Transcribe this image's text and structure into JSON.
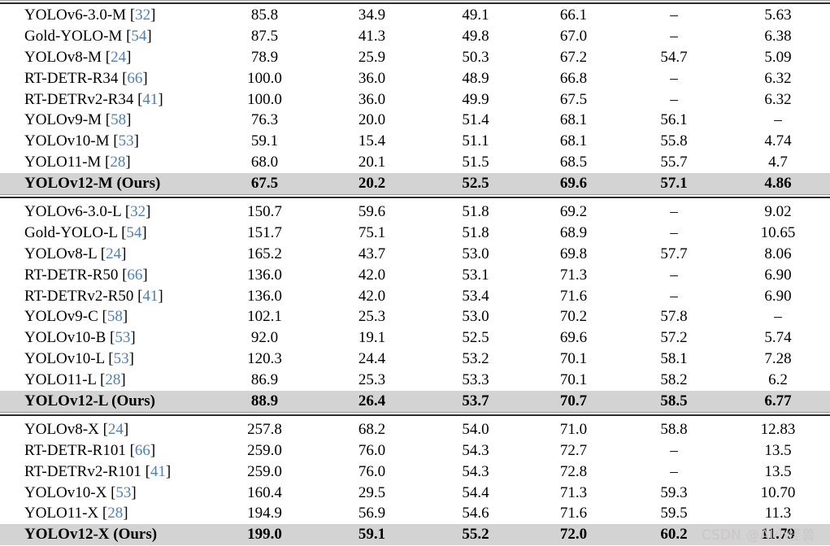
{
  "watermark": {
    "text": "CSDN @AI小怪兽"
  },
  "colors": {
    "highlight_row_bg": "#d3d3d3",
    "citation_blue": "#4a80c4",
    "rule_dark": "#2b2b2b",
    "rule_light": "#9b9b9b",
    "watermark_gray": "#c9c4c6"
  },
  "table": {
    "citation": {
      "open": "[",
      "close": "]"
    },
    "missing_value_glyph": "–",
    "sections": [
      {
        "scale": "M",
        "rows": [
          {
            "model": "YOLOv6-3.0-M",
            "ref": "32",
            "highlight": false,
            "values": [
              "85.8",
              "34.9",
              "49.1",
              "66.1",
              "–",
              "5.63"
            ]
          },
          {
            "model": "Gold-YOLO-M",
            "ref": "54",
            "highlight": false,
            "values": [
              "87.5",
              "41.3",
              "49.8",
              "67.0",
              "–",
              "6.38"
            ]
          },
          {
            "model": "YOLOv8-M",
            "ref": "24",
            "highlight": false,
            "values": [
              "78.9",
              "25.9",
              "50.3",
              "67.2",
              "54.7",
              "5.09"
            ]
          },
          {
            "model": "RT-DETR-R34",
            "ref": "66",
            "highlight": false,
            "values": [
              "100.0",
              "36.0",
              "48.9",
              "66.8",
              "–",
              "6.32"
            ]
          },
          {
            "model": "RT-DETRv2-R34",
            "ref": "41",
            "highlight": false,
            "values": [
              "100.0",
              "36.0",
              "49.9",
              "67.5",
              "–",
              "6.32"
            ]
          },
          {
            "model": "YOLOv9-M",
            "ref": "58",
            "highlight": false,
            "values": [
              "76.3",
              "20.0",
              "51.4",
              "68.1",
              "56.1",
              "–"
            ]
          },
          {
            "model": "YOLOv10-M",
            "ref": "53",
            "highlight": false,
            "values": [
              "59.1",
              "15.4",
              "51.1",
              "68.1",
              "55.8",
              "4.74"
            ]
          },
          {
            "model": "YOLO11-M",
            "ref": "28",
            "highlight": false,
            "values": [
              "68.0",
              "20.1",
              "51.5",
              "68.5",
              "55.7",
              "4.7"
            ]
          },
          {
            "model": "YOLOv12-M (Ours)",
            "ref": null,
            "highlight": true,
            "values": [
              "67.5",
              "20.2",
              "52.5",
              "69.6",
              "57.1",
              "4.86"
            ]
          }
        ]
      },
      {
        "scale": "L",
        "rows": [
          {
            "model": "YOLOv6-3.0-L",
            "ref": "32",
            "highlight": false,
            "values": [
              "150.7",
              "59.6",
              "51.8",
              "69.2",
              "–",
              "9.02"
            ]
          },
          {
            "model": "Gold-YOLO-L",
            "ref": "54",
            "highlight": false,
            "values": [
              "151.7",
              "75.1",
              "51.8",
              "68.9",
              "–",
              "10.65"
            ]
          },
          {
            "model": "YOLOv8-L",
            "ref": "24",
            "highlight": false,
            "values": [
              "165.2",
              "43.7",
              "53.0",
              "69.8",
              "57.7",
              "8.06"
            ]
          },
          {
            "model": "RT-DETR-R50",
            "ref": "66",
            "highlight": false,
            "values": [
              "136.0",
              "42.0",
              "53.1",
              "71.3",
              "–",
              "6.90"
            ]
          },
          {
            "model": "RT-DETRv2-R50",
            "ref": "41",
            "highlight": false,
            "values": [
              "136.0",
              "42.0",
              "53.4",
              "71.6",
              "–",
              "6.90"
            ]
          },
          {
            "model": "YOLOv9-C",
            "ref": "58",
            "highlight": false,
            "values": [
              "102.1",
              "25.3",
              "53.0",
              "70.2",
              "57.8",
              "–"
            ]
          },
          {
            "model": "YOLOv10-B",
            "ref": "53",
            "highlight": false,
            "values": [
              "92.0",
              "19.1",
              "52.5",
              "69.6",
              "57.2",
              "5.74"
            ]
          },
          {
            "model": "YOLOv10-L",
            "ref": "53",
            "highlight": false,
            "values": [
              "120.3",
              "24.4",
              "53.2",
              "70.1",
              "58.1",
              "7.28"
            ]
          },
          {
            "model": "YOLO11-L",
            "ref": "28",
            "highlight": false,
            "values": [
              "86.9",
              "25.3",
              "53.3",
              "70.1",
              "58.2",
              "6.2"
            ]
          },
          {
            "model": "YOLOv12-L (Ours)",
            "ref": null,
            "highlight": true,
            "values": [
              "88.9",
              "26.4",
              "53.7",
              "70.7",
              "58.5",
              "6.77"
            ]
          }
        ]
      },
      {
        "scale": "X",
        "rows": [
          {
            "model": "YOLOv8-X",
            "ref": "24",
            "highlight": false,
            "values": [
              "257.8",
              "68.2",
              "54.0",
              "71.0",
              "58.8",
              "12.83"
            ]
          },
          {
            "model": "RT-DETR-R101",
            "ref": "66",
            "highlight": false,
            "values": [
              "259.0",
              "76.0",
              "54.3",
              "72.7",
              "–",
              "13.5"
            ]
          },
          {
            "model": "RT-DETRv2-R101",
            "ref": "41",
            "highlight": false,
            "values": [
              "259.0",
              "76.0",
              "54.3",
              "72.8",
              "–",
              "13.5"
            ]
          },
          {
            "model": "YOLOv10-X",
            "ref": "53",
            "highlight": false,
            "values": [
              "160.4",
              "29.5",
              "54.4",
              "71.3",
              "59.3",
              "10.70"
            ]
          },
          {
            "model": "YOLO11-X",
            "ref": "28",
            "highlight": false,
            "values": [
              "194.9",
              "56.9",
              "54.6",
              "71.6",
              "59.5",
              "11.3"
            ]
          },
          {
            "model": "YOLOv12-X (Ours)",
            "ref": null,
            "highlight": true,
            "values": [
              "199.0",
              "59.1",
              "55.2",
              "72.0",
              "60.2",
              "11.79"
            ]
          }
        ]
      }
    ]
  }
}
